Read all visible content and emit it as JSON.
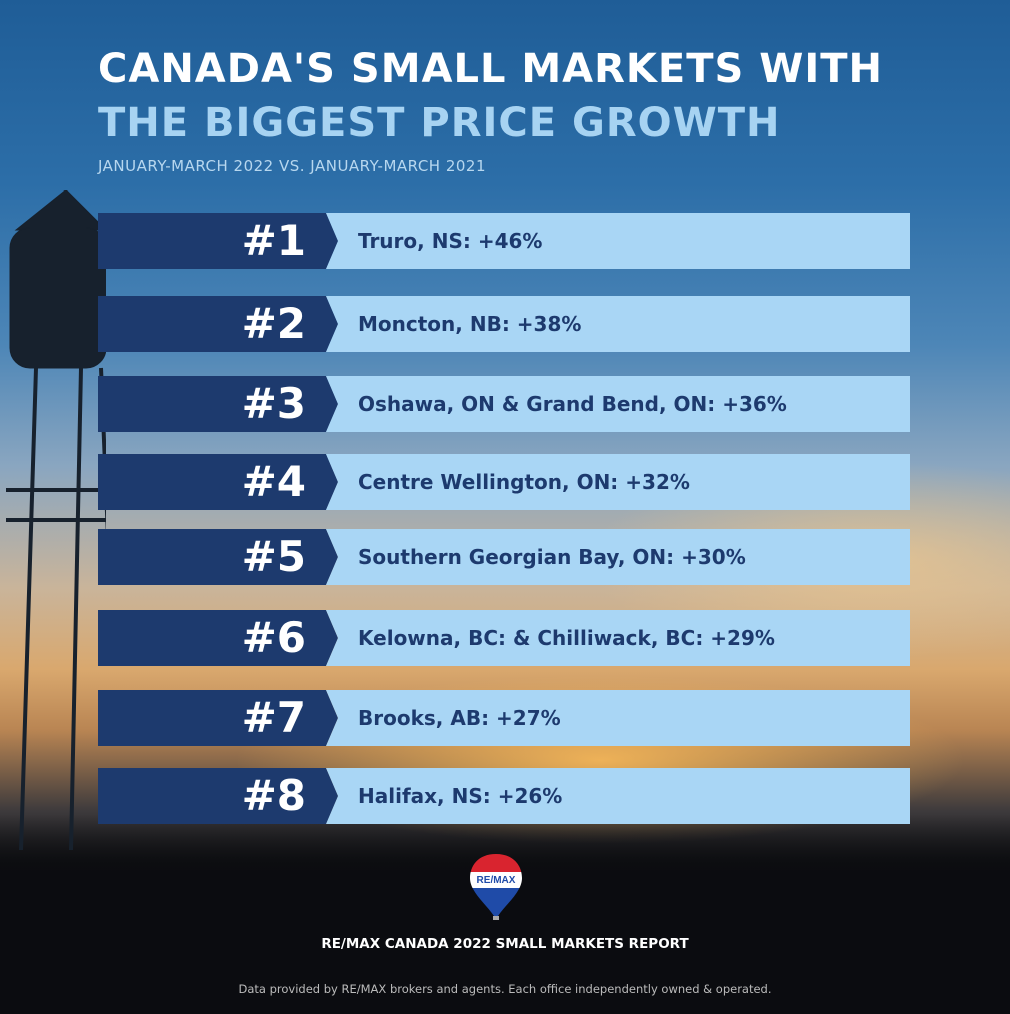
{
  "header": {
    "title_line1": "CANADA'S SMALL MARKETS WITH",
    "title_line2": "THE BIGGEST PRICE GROWTH",
    "subtitle": "JANUARY-MARCH 2022 VS. JANUARY-MARCH 2021"
  },
  "rankings": [
    {
      "rank": "#1",
      "label": "Truro, NS: +46%"
    },
    {
      "rank": "#2",
      "label": "Moncton, NB: +38%"
    },
    {
      "rank": "#3",
      "label": "Oshawa, ON & Grand Bend, ON: +36%"
    },
    {
      "rank": "#4",
      "label": "Centre Wellington, ON: +32%"
    },
    {
      "rank": "#5",
      "label": "Southern Georgian Bay, ON: +30%"
    },
    {
      "rank": "#6",
      "label": "Kelowna, BC: & Chilliwack, BC: +29%"
    },
    {
      "rank": "#7",
      "label": "Brooks, AB: +27%"
    },
    {
      "rank": "#8",
      "label": "Halifax, NS: +26%"
    }
  ],
  "footer": {
    "logo_text": "RE/MAX",
    "report": "RE/MAX CANADA 2022 SMALL MARKETS REPORT",
    "disclaimer": "Data provided by RE/MAX brokers and agents. Each office independently owned & operated."
  },
  "colors": {
    "navy": "#1d3a6e",
    "light_blue": "#a9d6f5",
    "title_blue": "#a7d3f2"
  }
}
